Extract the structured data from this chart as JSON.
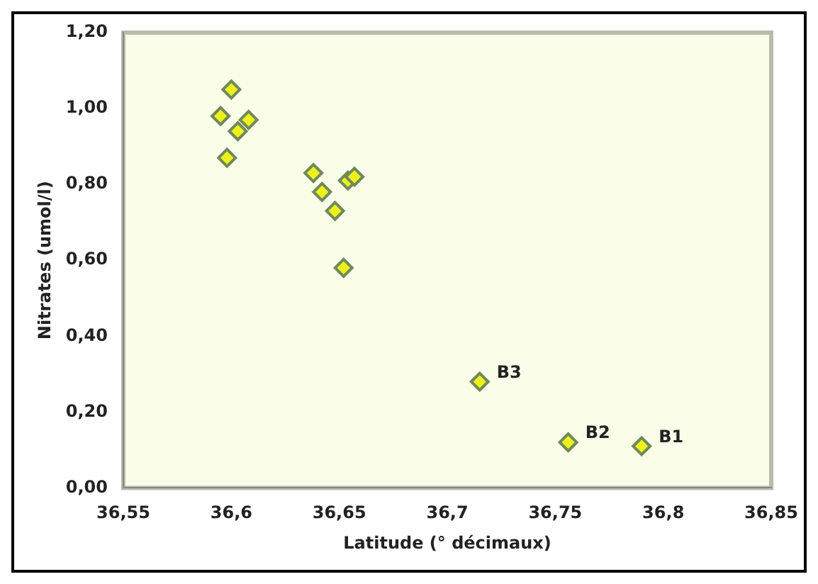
{
  "chart_data": {
    "type": "scatter",
    "xlabel": "Latitude (° décimaux)",
    "ylabel": "Nitrates (umol/l)",
    "x": [
      36.595,
      36.6,
      36.603,
      36.608,
      36.598,
      36.638,
      36.642,
      36.648,
      36.654,
      36.657,
      36.652,
      36.715,
      36.756,
      36.79
    ],
    "values": [
      0.98,
      1.05,
      0.94,
      0.97,
      0.87,
      0.83,
      0.78,
      0.73,
      0.81,
      0.82,
      0.58,
      0.28,
      0.12,
      0.11
    ],
    "color": "#eef01e",
    "marker": "diamond",
    "grid": false,
    "legend": false,
    "xlim": [
      36.55,
      36.85
    ],
    "xticks": [
      {
        "value": 36.55,
        "label": "36,55"
      },
      {
        "value": 36.6,
        "label": "36,6"
      },
      {
        "value": 36.65,
        "label": "36,65"
      },
      {
        "value": 36.7,
        "label": "36,7"
      },
      {
        "value": 36.75,
        "label": "36,75"
      },
      {
        "value": 36.8,
        "label": "36,8"
      },
      {
        "value": 36.85,
        "label": "36,85"
      }
    ],
    "ylim": [
      0,
      1.2
    ],
    "yticks": [
      {
        "value": 0,
        "label": "0,00"
      },
      {
        "value": 0.2,
        "label": "0,20"
      },
      {
        "value": 0.4,
        "label": "0,40"
      },
      {
        "value": 0.6,
        "label": "0,60"
      },
      {
        "value": 0.8,
        "label": "0,80"
      },
      {
        "value": 1,
        "label": "1,00"
      },
      {
        "value": 1.2,
        "label": "1,20"
      }
    ],
    "annotations": [
      {
        "text": "B3",
        "x": 36.715,
        "y": 0.28
      },
      {
        "text": "B2",
        "x": 36.756,
        "y": 0.12
      },
      {
        "text": "B1",
        "x": 36.79,
        "y": 0.11
      }
    ]
  }
}
